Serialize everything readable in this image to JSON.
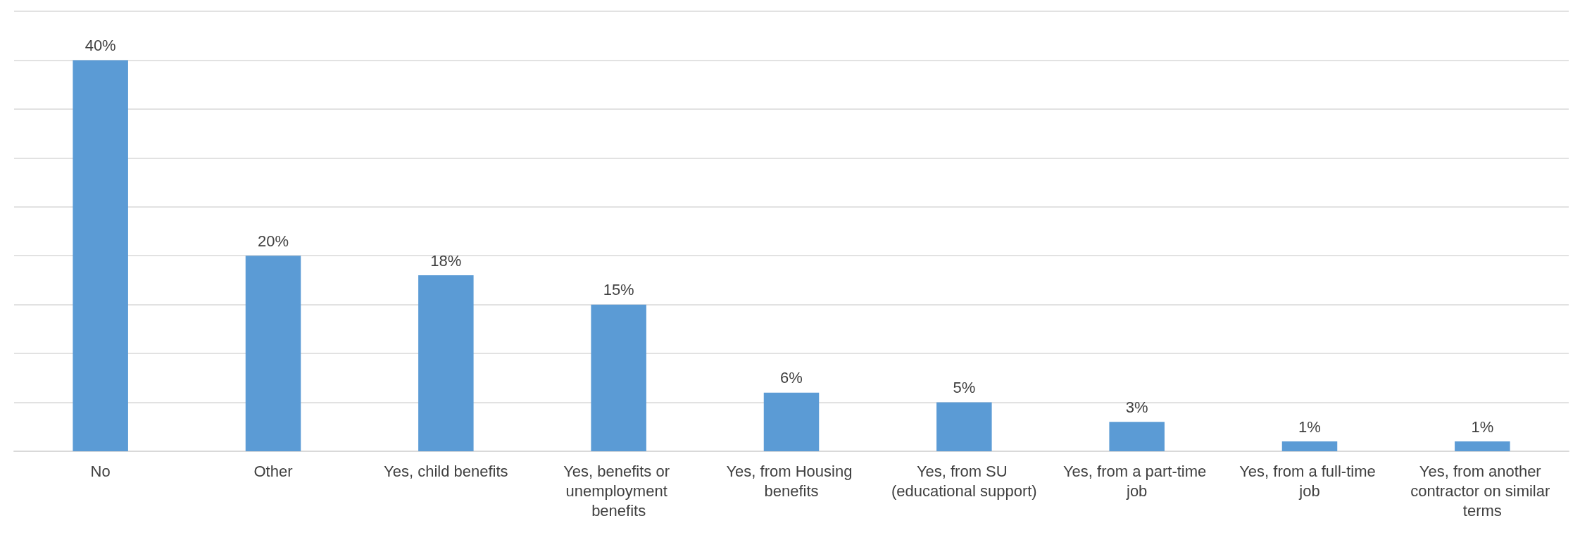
{
  "chart_data": {
    "type": "bar",
    "categories": [
      "No",
      "Other",
      "Yes, child benefits",
      "Yes, benefits or unemployment benefits",
      "Yes, from Housing benefits",
      "Yes, from SU (educational support)",
      "Yes, from a part-time job",
      "Yes, from a full-time job",
      "Yes, from another contractor on similar terms"
    ],
    "values": [
      40,
      20,
      18,
      15,
      6,
      5,
      3,
      1,
      1
    ],
    "value_labels": [
      "40%",
      "20%",
      "18%",
      "15%",
      "6%",
      "5%",
      "3%",
      "1%",
      "1%"
    ],
    "color": "#5b9bd5",
    "ylim": [
      0,
      45
    ],
    "yticks": [
      {
        "value": 0,
        "label": null
      },
      {
        "value": 5,
        "label": null
      },
      {
        "value": 10,
        "label": null
      },
      {
        "value": 15,
        "label": null
      },
      {
        "value": 20,
        "label": null
      },
      {
        "value": 25,
        "label": null
      },
      {
        "value": 30,
        "label": null
      },
      {
        "value": 35,
        "label": null
      },
      {
        "value": 40,
        "label": null
      },
      {
        "value": 45,
        "label": null
      }
    ],
    "grid": "y",
    "tick_labels": "x"
  }
}
